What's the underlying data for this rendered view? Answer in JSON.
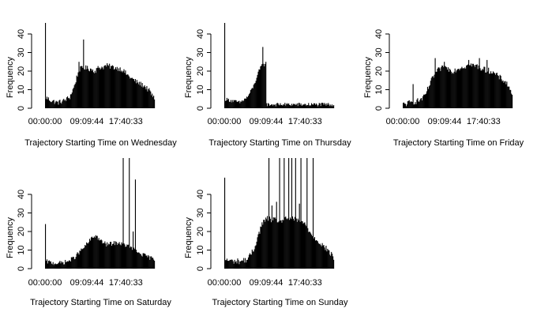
{
  "chart_data": [
    {
      "type": "bar",
      "xlabel": "Trajectory Starting Time on Wednesday",
      "ylabel": "Frequency",
      "yticks": [
        0,
        10,
        20,
        30,
        40
      ],
      "xtick_labels": [
        "00:00:00",
        "09:09:44",
        "17:40:33"
      ],
      "xtick_fractions": [
        0.0,
        0.381,
        0.736
      ],
      "ylim": [
        0,
        45
      ],
      "bins": 144,
      "profile": [
        [
          0,
          6
        ],
        [
          8,
          4
        ],
        [
          16,
          3
        ],
        [
          24,
          4
        ],
        [
          32,
          6
        ],
        [
          38,
          12
        ],
        [
          42,
          18
        ],
        [
          45,
          21
        ],
        [
          50,
          22
        ],
        [
          60,
          21
        ],
        [
          65,
          20
        ],
        [
          70,
          22
        ],
        [
          75,
          22
        ],
        [
          80,
          23
        ],
        [
          90,
          22
        ],
        [
          100,
          21
        ],
        [
          110,
          17
        ],
        [
          120,
          14
        ],
        [
          130,
          12
        ],
        [
          137,
          9
        ],
        [
          143,
          5
        ]
      ],
      "spikes": [
        [
          0,
          47
        ],
        [
          50,
          37
        ],
        [
          44,
          25
        ]
      ],
      "noise": 1.4
    },
    {
      "type": "bar",
      "xlabel": "Trajectory Starting Time on Thursday",
      "ylabel": "Frequency",
      "yticks": [
        0,
        10,
        20,
        30,
        40
      ],
      "xtick_labels": [
        "00:00:00",
        "09:09:44",
        "17:40:33"
      ],
      "xtick_fractions": [
        0.0,
        0.381,
        0.736
      ],
      "ylim": [
        0,
        45
      ],
      "bins": 144,
      "profile": [
        [
          0,
          5
        ],
        [
          10,
          4
        ],
        [
          20,
          3
        ],
        [
          30,
          6
        ],
        [
          38,
          12
        ],
        [
          45,
          20
        ],
        [
          50,
          24
        ],
        [
          54,
          23
        ],
        [
          55,
          2
        ],
        [
          143,
          2
        ]
      ],
      "spikes": [
        [
          0,
          47
        ],
        [
          50,
          33
        ],
        [
          54,
          25
        ]
      ],
      "noise": 1.0
    },
    {
      "type": "bar",
      "xlabel": "Trajectory Starting Time on Friday",
      "ylabel": "Frequency",
      "yticks": [
        0,
        10,
        20,
        30,
        40
      ],
      "xtick_labels": [
        "00:00:00",
        "09:09:44",
        "17:40:33"
      ],
      "xtick_fractions": [
        0.0,
        0.381,
        0.736
      ],
      "ylim": [
        0,
        45
      ],
      "bins": 144,
      "profile": [
        [
          0,
          2
        ],
        [
          10,
          3
        ],
        [
          20,
          4
        ],
        [
          28,
          6
        ],
        [
          35,
          13
        ],
        [
          42,
          19
        ],
        [
          48,
          21
        ],
        [
          55,
          22
        ],
        [
          65,
          20
        ],
        [
          75,
          22
        ],
        [
          85,
          23
        ],
        [
          95,
          23
        ],
        [
          105,
          21
        ],
        [
          115,
          20
        ],
        [
          125,
          17
        ],
        [
          135,
          14
        ],
        [
          143,
          8
        ]
      ],
      "spikes": [
        [
          13,
          13
        ],
        [
          42,
          27
        ],
        [
          54,
          25
        ],
        [
          86,
          26
        ],
        [
          100,
          27
        ],
        [
          110,
          26
        ]
      ],
      "noise": 1.6
    },
    {
      "type": "bar",
      "xlabel": "Trajectory Starting Time on Saturday",
      "ylabel": "Frequency",
      "yticks": [
        0,
        10,
        20,
        30,
        40
      ],
      "xtick_labels": [
        "00:00:00",
        "09:09:44",
        "17:40:33"
      ],
      "xtick_fractions": [
        0.0,
        0.381,
        0.736
      ],
      "ylim": [
        0,
        45
      ],
      "bins": 144,
      "profile": [
        [
          0,
          4
        ],
        [
          10,
          3
        ],
        [
          20,
          3
        ],
        [
          30,
          4
        ],
        [
          38,
          6
        ],
        [
          45,
          9
        ],
        [
          52,
          12
        ],
        [
          60,
          16
        ],
        [
          66,
          18
        ],
        [
          72,
          15
        ],
        [
          80,
          13
        ],
        [
          95,
          14
        ],
        [
          110,
          12
        ],
        [
          120,
          9
        ],
        [
          130,
          7
        ],
        [
          143,
          5
        ]
      ],
      "spikes": [
        [
          0,
          24
        ],
        [
          102,
          65
        ],
        [
          110,
          60
        ],
        [
          118,
          48
        ],
        [
          115,
          20
        ]
      ],
      "noise": 1.2
    },
    {
      "type": "bar",
      "xlabel": "Trajectory Starting Time on Sunday",
      "ylabel": "Frequency",
      "yticks": [
        0,
        10,
        20,
        30,
        40
      ],
      "xtick_labels": [
        "00:00:00",
        "09:09:44",
        "17:40:33"
      ],
      "xtick_fractions": [
        0.0,
        0.381,
        0.736
      ],
      "ylim": [
        0,
        45
      ],
      "bins": 144,
      "profile": [
        [
          0,
          5
        ],
        [
          10,
          4
        ],
        [
          20,
          4
        ],
        [
          30,
          5
        ],
        [
          38,
          10
        ],
        [
          44,
          18
        ],
        [
          50,
          25
        ],
        [
          56,
          27
        ],
        [
          65,
          26
        ],
        [
          75,
          26
        ],
        [
          85,
          27
        ],
        [
          95,
          26
        ],
        [
          105,
          24
        ],
        [
          115,
          18
        ],
        [
          125,
          14
        ],
        [
          135,
          10
        ],
        [
          143,
          6
        ]
      ],
      "spikes": [
        [
          0,
          49
        ],
        [
          58,
          100
        ],
        [
          62,
          34
        ],
        [
          72,
          100
        ],
        [
          78,
          100
        ],
        [
          84,
          100
        ],
        [
          88,
          100
        ],
        [
          93,
          100
        ],
        [
          100,
          100
        ],
        [
          108,
          100
        ],
        [
          116,
          100
        ],
        [
          68,
          36
        ],
        [
          98,
          35
        ]
      ],
      "noise": 1.6
    }
  ]
}
